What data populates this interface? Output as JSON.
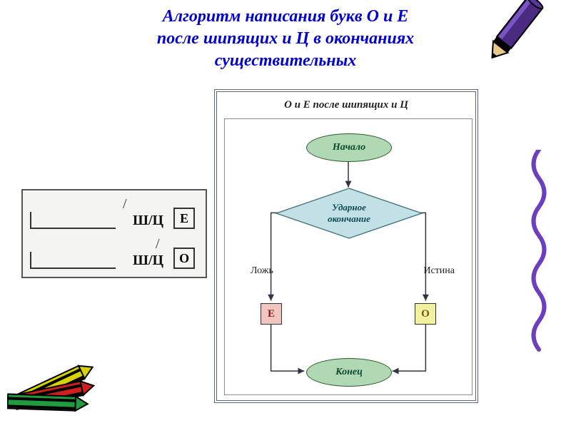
{
  "title_line1": "Алгоритм написания букв О и Е",
  "title_line2": "после шипящих и Ц в окончаниях",
  "title_line3": "существительных",
  "flowchart": {
    "title": "О и Е после шипящих и Ц",
    "start": "Начало",
    "decision": "Ударное окончание",
    "false_label": "Ложь",
    "true_label": "Истина",
    "false_result": "Е",
    "true_result": "О",
    "end": "Конец"
  },
  "left_panel": {
    "consonants": "Ш/Ц",
    "letter_e": "Е",
    "letter_o": "О"
  },
  "colors": {
    "title": "#0000d0",
    "terminator_fill": "#b0d8b3",
    "terminator_stroke": "#2d5a2f",
    "decision_fill": "#c3e0e6",
    "decision_stroke": "#3a6f7a",
    "e_fill": "#f2c5c1",
    "o_fill": "#f3f0a2",
    "border": "#5a647a",
    "line": "#334"
  }
}
